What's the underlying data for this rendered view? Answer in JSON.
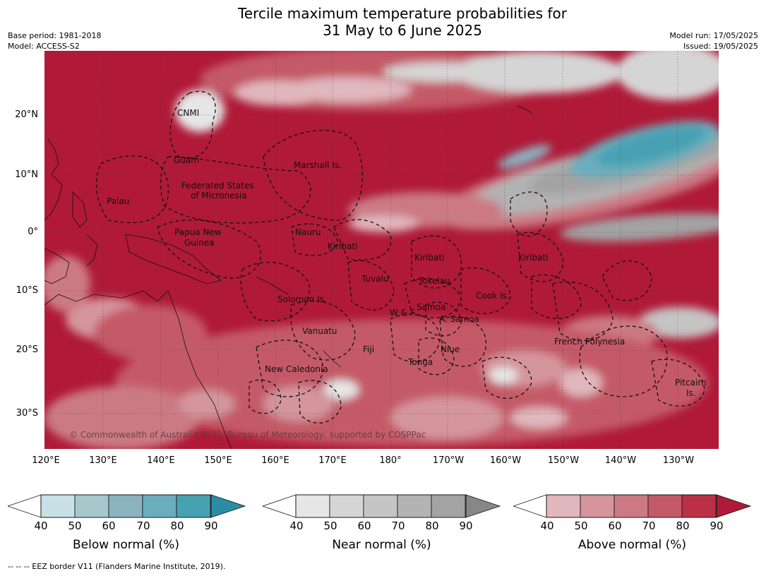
{
  "title": {
    "line1": "Tercile maximum temperature probabilities for",
    "line2": "31 May to 6 June 2025"
  },
  "meta": {
    "base_period": "Base period: 1981-2018",
    "model": "Model: ACCESS-S2",
    "model_run": "Model run: 17/05/2025",
    "issued": "Issued: 19/05/2025"
  },
  "axes": {
    "lat": [
      "20°N",
      "10°N",
      "0°",
      "10°S",
      "20°S",
      "30°S"
    ],
    "lon": [
      "120°E",
      "130°E",
      "140°E",
      "150°E",
      "160°E",
      "170°E",
      "180°",
      "170°W",
      "160°W",
      "150°W",
      "140°W",
      "130°W"
    ]
  },
  "labels": {
    "cnmi": "CNMI",
    "guam": "Guam",
    "marshall": "Marshall Is.",
    "fsm1": "Federated States",
    "fsm2": "of Micronesia",
    "palau": "Palau",
    "png1": "Papua New",
    "png2": "Guinea",
    "nauru": "Nauru",
    "kiribati_w": "Kiribati",
    "kiribati_c": "Kiribati",
    "kiribati_e": "Kiribati",
    "tuvalu": "Tuvalu",
    "tokelau": "Tokelau",
    "solomon": "Solomon Is.",
    "cook": "Cook Is.",
    "wf": "W & F",
    "samoa": "Samoa",
    "asamoa": "A. Samoa",
    "vanuatu": "Vanuatu",
    "fiji": "Fiji",
    "niue": "Niue",
    "french_polynesia": "French Polynesia",
    "tonga": "Tonga",
    "new_caledonia": "New Caledonia",
    "pitcairn1": "Pitcairn",
    "pitcairn2": "Is."
  },
  "copyright": "© Commonwealth of Australia 2025, Bureau of Meteorology, supported by COSPPac",
  "colorbars": {
    "below": {
      "title": "Below normal (%)",
      "colors": [
        "#c8e0e6",
        "#a6c8cc",
        "#8bb3bf",
        "#6aaebd",
        "#46a1b2",
        "#2b8da3"
      ]
    },
    "near": {
      "title": "Near normal (%)",
      "colors": [
        "#e6e6e6",
        "#d5d5d5",
        "#c5c5c5",
        "#b3b3b3",
        "#a3a3a3",
        "#878787"
      ]
    },
    "above": {
      "title": "Above normal (%)",
      "colors": [
        "#e0b7bd",
        "#d4959d",
        "#cb7a84",
        "#c45a68",
        "#ba3147",
        "#b01a38"
      ]
    },
    "ticks": [
      "40",
      "50",
      "60",
      "70",
      "80",
      "90"
    ]
  },
  "footer": "--  --  -- EEZ border V11 (Flanders Marine Institute, 2019)."
}
